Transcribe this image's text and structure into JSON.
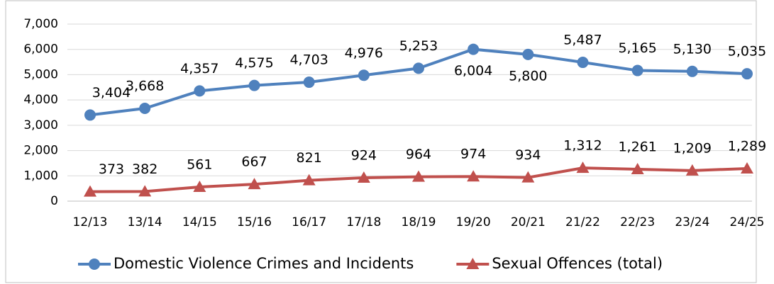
{
  "chart_data": {
    "type": "line",
    "categories": [
      "12/13",
      "13/14",
      "14/15",
      "15/16",
      "16/17",
      "17/18",
      "18/19",
      "19/20",
      "20/21",
      "21/22",
      "22/23",
      "23/24",
      "24/25"
    ],
    "series": [
      {
        "name": "Domestic Violence Crimes and Incidents",
        "color": "#4f81bd",
        "marker": "circle",
        "values": [
          3404,
          3668,
          4357,
          4575,
          4703,
          4976,
          5253,
          6004,
          5800,
          5487,
          5165,
          5130,
          5035
        ],
        "value_labels": [
          "3,404",
          "3,668",
          "4,357",
          "4,575",
          "4,703",
          "4,976",
          "5,253",
          "6,004",
          "5,800",
          "5,487",
          "5,165",
          "5,130",
          "5,035"
        ]
      },
      {
        "name": "Sexual Offences (total)",
        "color": "#c0504d",
        "marker": "triangle",
        "values": [
          373,
          382,
          561,
          667,
          821,
          924,
          964,
          974,
          934,
          1312,
          1261,
          1209,
          1289
        ],
        "value_labels": [
          "373",
          "382",
          "561",
          "667",
          "821",
          "924",
          "964",
          "974",
          "934",
          "1,312",
          "1,261",
          "1,209",
          "1,289"
        ]
      }
    ],
    "ylim": [
      0,
      7000
    ],
    "yticks": [
      0,
      {
        "value": 1000,
        "label": "1,000"
      },
      {
        "value": 2000,
        "label": "2,000"
      },
      {
        "value": 3000,
        "label": "3,000"
      },
      {
        "value": 4000,
        "label": "4,000"
      },
      {
        "value": 5000,
        "label": "5,000"
      },
      {
        "value": 6000,
        "label": "6,000"
      },
      {
        "value": 7000,
        "label": "7,000"
      }
    ],
    "grid": true,
    "legend": "bottom"
  }
}
